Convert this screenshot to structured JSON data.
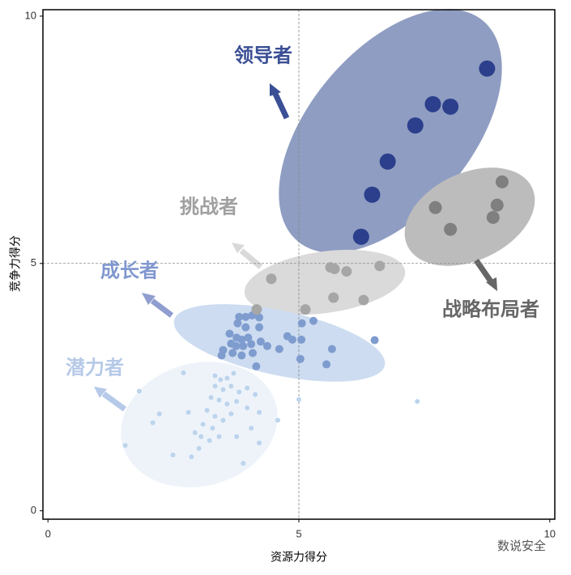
{
  "chart_data": {
    "type": "scatter",
    "xlabel": "资源力得分",
    "ylabel": "竞争力得分",
    "watermark": "数说安全",
    "xlim": [
      -0.1,
      10.1
    ],
    "ylim": [
      -0.17,
      10.13
    ],
    "xticks": [
      0,
      5,
      10
    ],
    "yticks": [
      0,
      5,
      10
    ],
    "reference_lines": {
      "x": 5,
      "y": 5
    },
    "series": [
      {
        "name": "领导者",
        "color": "#2b3f8c",
        "label_color": "#3a4f95",
        "x": [
          8.75,
          8.02,
          7.67,
          7.32,
          6.77,
          6.46,
          6.24
        ],
        "y": [
          8.94,
          8.17,
          8.22,
          7.79,
          7.06,
          6.39,
          5.54
        ]
      },
      {
        "name": "战略布局者",
        "color": "#7f7f7f",
        "label_color": "#666666",
        "x": [
          9.05,
          8.95,
          8.87,
          7.72,
          8.02
        ],
        "y": [
          6.65,
          6.18,
          5.93,
          6.13,
          5.69
        ]
      },
      {
        "name": "挑战者",
        "color": "#a6a6a6",
        "label_color": "#a0a0a0",
        "x": [
          4.45,
          5.63,
          5.71,
          5.95,
          6.61,
          5.69,
          6.29,
          5.13,
          4.16
        ],
        "y": [
          4.69,
          4.92,
          4.89,
          4.84,
          4.95,
          4.31,
          4.26,
          4.07,
          4.07
        ]
      },
      {
        "name": "成长者",
        "color": "#7f9ccf",
        "label_color": "#8097cf",
        "x": [
          3.81,
          3.94,
          4.07,
          4.21,
          3.78,
          3.94,
          4.21,
          3.62,
          3.76,
          3.86,
          3.99,
          3.65,
          3.75,
          3.89,
          4.05,
          4.24,
          3.49,
          3.68,
          3.86,
          4.08,
          4.37,
          4.61,
          4.77,
          4.87,
          5.06,
          5.29,
          5.05,
          5.66,
          5.03,
          5.55,
          6.51,
          4.15,
          3.46
        ],
        "y": [
          3.92,
          3.92,
          3.95,
          3.91,
          3.79,
          3.71,
          3.71,
          3.58,
          3.5,
          3.46,
          3.5,
          3.38,
          3.33,
          3.33,
          3.37,
          3.42,
          3.25,
          3.19,
          3.14,
          3.19,
          3.33,
          3.27,
          3.53,
          3.46,
          3.79,
          3.84,
          3.46,
          3.27,
          3.07,
          2.96,
          3.45,
          2.92,
          3.14
        ]
      },
      {
        "name": "潜力者",
        "color": "#bcd4ec",
        "label_color": "#b6c9e8",
        "x": [
          2.7,
          3.33,
          3.44,
          3.57,
          3.7,
          3.33,
          3.49,
          3.65,
          3.81,
          3.97,
          4.13,
          3.25,
          3.41,
          3.57,
          3.76,
          3.97,
          4.21,
          3.17,
          3.33,
          3.49,
          3.65,
          3.09,
          3.28,
          3.05,
          3.22,
          3.41,
          2.93,
          2.8,
          2.22,
          2.09,
          1.82,
          1.54,
          2.49,
          2.86,
          3.89,
          4.21,
          4.58,
          5.0,
          7.36,
          4.05,
          3.76,
          3.01
        ],
        "y": [
          2.79,
          2.73,
          2.65,
          2.68,
          2.78,
          2.52,
          2.45,
          2.52,
          2.4,
          2.48,
          2.35,
          2.29,
          2.24,
          2.16,
          2.21,
          2.08,
          1.99,
          2.03,
          1.91,
          1.83,
          1.96,
          1.75,
          1.67,
          1.5,
          1.42,
          1.5,
          1.58,
          1.99,
          1.96,
          1.78,
          2.42,
          1.32,
          1.13,
          1.09,
          0.96,
          1.37,
          1.83,
          2.25,
          2.21,
          1.67,
          1.5,
          1.26
        ]
      }
    ]
  }
}
